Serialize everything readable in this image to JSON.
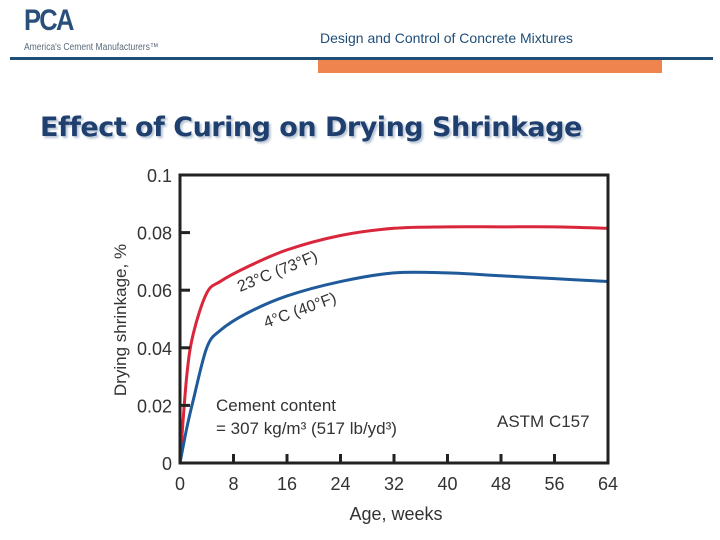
{
  "logo": {
    "text": "PCA",
    "tagline": "America's Cement Manufacturers™"
  },
  "header": {
    "title": "Design and Control of Concrete Mixtures"
  },
  "slide": {
    "title": "Effect of Curing on Drying Shrinkage"
  },
  "colors": {
    "accent_blue": "#1f4e79",
    "accent_orange": "#f0844f",
    "series_23C": "#d9263b",
    "series_4C": "#1f5a9a"
  },
  "chart_data": {
    "type": "line",
    "title": "",
    "xlabel": "Age, weeks",
    "ylabel": "Drying shrinkage, %",
    "xlim": [
      0,
      64
    ],
    "ylim": [
      0,
      0.1
    ],
    "xticks": [
      "0",
      "8",
      "16",
      "24",
      "32",
      "40",
      "48",
      "56",
      "64"
    ],
    "yticks": [
      "0",
      "0.02",
      "0.04",
      "0.06",
      "0.08",
      "0.1"
    ],
    "grid": false,
    "series": [
      {
        "name": "23°C (73°F)",
        "color": "#d9263b",
        "x": [
          0,
          1,
          2,
          4,
          6,
          10,
          16,
          24,
          32,
          40,
          48,
          56,
          64
        ],
        "y": [
          0,
          0.03,
          0.045,
          0.059,
          0.063,
          0.068,
          0.074,
          0.079,
          0.0815,
          0.082,
          0.082,
          0.082,
          0.0815
        ]
      },
      {
        "name": "4°C (40°F)",
        "color": "#1f5a9a",
        "x": [
          0,
          1,
          2,
          4,
          6,
          10,
          16,
          24,
          32,
          40,
          48,
          56,
          64
        ],
        "y": [
          0,
          0.012,
          0.022,
          0.04,
          0.046,
          0.052,
          0.058,
          0.063,
          0.066,
          0.066,
          0.065,
          0.064,
          0.063
        ]
      }
    ],
    "annotations": {
      "cement_line1": "Cement content",
      "cement_line2": "= 307 kg/m³ (517 lb/yd³)",
      "standard": "ASTM C157"
    }
  }
}
